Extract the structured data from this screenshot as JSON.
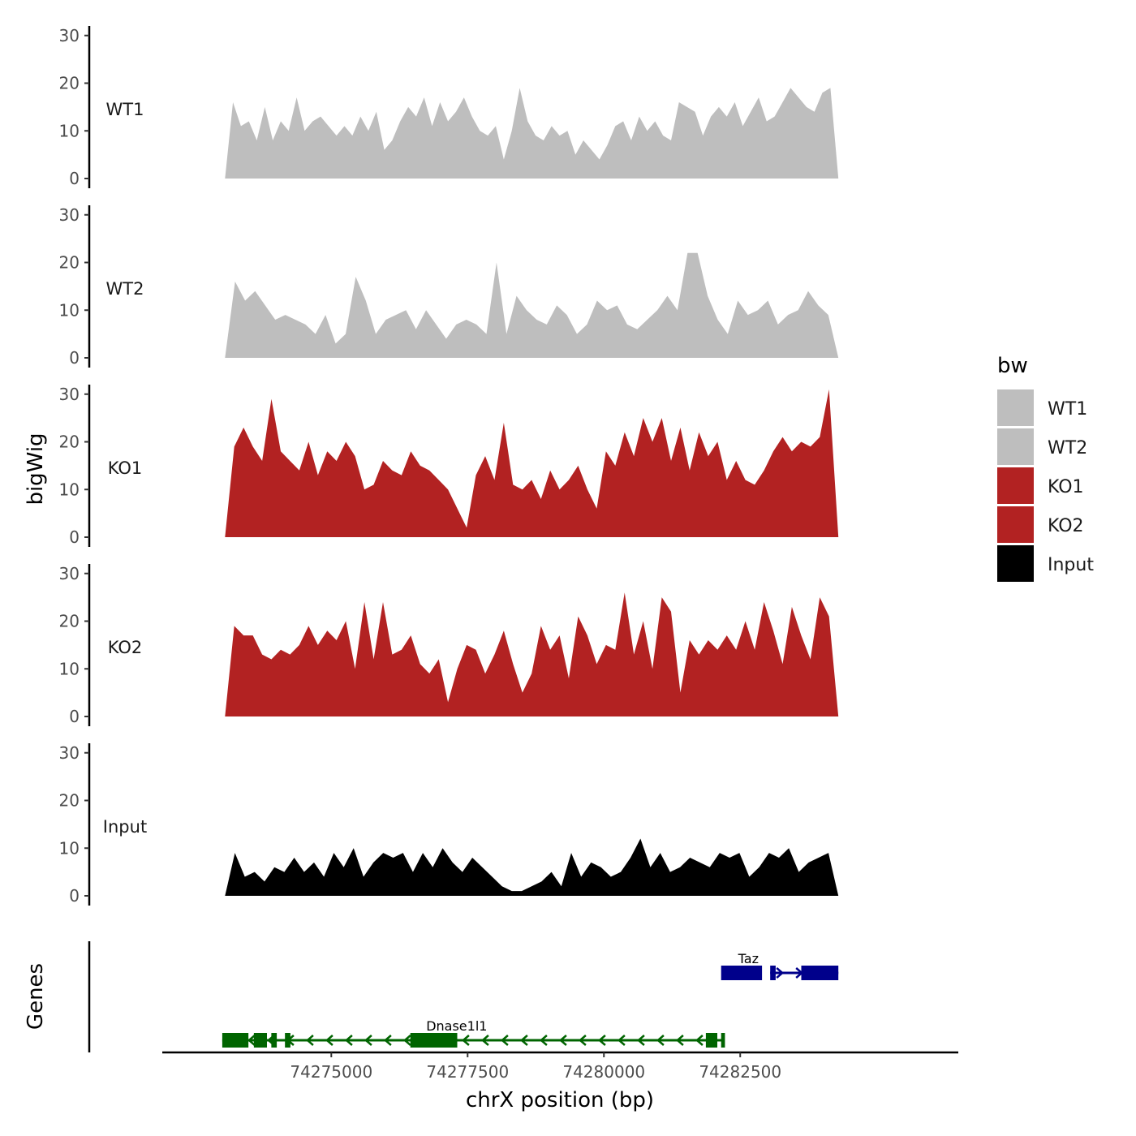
{
  "chart_data": {
    "type": "area",
    "chromosome": "chrX",
    "x_label": "chrX position (bp)",
    "y_label": "bigWig",
    "genes_panel_label": "Genes",
    "xlim": [
      74271900,
      74286500
    ],
    "data_range": [
      74273050,
      74284300
    ],
    "ylim": [
      0,
      32
    ],
    "y_ticks": [
      "0",
      "10",
      "20",
      "30"
    ],
    "x_ticks": [
      {
        "value": 74275000,
        "label": "74275000"
      },
      {
        "value": 74277500,
        "label": "74277500"
      },
      {
        "value": 74280000,
        "label": "74280000"
      },
      {
        "value": 74282500,
        "label": "74282500"
      }
    ],
    "legend": {
      "title": "bw",
      "entries": [
        {
          "label": "WT1",
          "color": "#bebebe"
        },
        {
          "label": "WT2",
          "color": "#bebebe"
        },
        {
          "label": "KO1",
          "color": "#b22222"
        },
        {
          "label": "KO2",
          "color": "#b22222"
        },
        {
          "label": "Input",
          "color": "#000000"
        }
      ]
    },
    "tracks": [
      {
        "name": "WT1",
        "color": "#bebebe",
        "values": [
          0,
          16,
          11,
          12,
          8,
          15,
          8,
          12,
          10,
          17,
          10,
          12,
          13,
          11,
          9,
          11,
          9,
          13,
          10,
          14,
          6,
          8,
          12,
          15,
          13,
          17,
          11,
          16,
          12,
          14,
          17,
          13,
          10,
          9,
          11,
          4,
          10,
          19,
          12,
          9,
          8,
          11,
          9,
          10,
          5,
          8,
          6,
          4,
          7,
          11,
          12,
          8,
          13,
          10,
          12,
          9,
          8,
          16,
          15,
          14,
          9,
          13,
          15,
          13,
          16,
          11,
          14,
          17,
          12,
          13,
          16,
          19,
          17,
          15,
          14,
          18,
          19,
          0
        ]
      },
      {
        "name": "WT2",
        "color": "#bebebe",
        "values": [
          0,
          16,
          12,
          14,
          11,
          8,
          9,
          8,
          7,
          5,
          9,
          3,
          5,
          17,
          12,
          5,
          8,
          9,
          10,
          6,
          10,
          7,
          4,
          7,
          8,
          7,
          5,
          20,
          5,
          13,
          10,
          8,
          7,
          11,
          9,
          5,
          7,
          12,
          10,
          11,
          7,
          6,
          8,
          10,
          13,
          10,
          22,
          22,
          13,
          8,
          5,
          12,
          9,
          10,
          12,
          7,
          9,
          10,
          14,
          11,
          9,
          0
        ]
      },
      {
        "name": "KO1",
        "color": "#b22222",
        "values": [
          0,
          19,
          23,
          19,
          16,
          29,
          18,
          16,
          14,
          20,
          13,
          18,
          16,
          20,
          17,
          10,
          11,
          16,
          14,
          13,
          18,
          15,
          14,
          12,
          10,
          6,
          2,
          13,
          17,
          12,
          24,
          11,
          10,
          12,
          8,
          14,
          10,
          12,
          15,
          10,
          6,
          18,
          15,
          22,
          17,
          25,
          20,
          25,
          16,
          23,
          14,
          22,
          17,
          20,
          12,
          16,
          12,
          11,
          14,
          18,
          21,
          18,
          20,
          19,
          21,
          31,
          0
        ]
      },
      {
        "name": "KO2",
        "color": "#b22222",
        "values": [
          0,
          19,
          17,
          17,
          13,
          12,
          14,
          13,
          15,
          19,
          15,
          18,
          16,
          20,
          10,
          24,
          12,
          24,
          13,
          14,
          17,
          11,
          9,
          12,
          3,
          10,
          15,
          14,
          9,
          13,
          18,
          11,
          5,
          9,
          19,
          14,
          17,
          8,
          21,
          17,
          11,
          15,
          14,
          26,
          13,
          20,
          10,
          25,
          22,
          5,
          16,
          13,
          16,
          14,
          17,
          14,
          20,
          14,
          24,
          18,
          11,
          23,
          17,
          12,
          25,
          21,
          0
        ]
      },
      {
        "name": "Input",
        "color": "#000000",
        "values": [
          0,
          9,
          4,
          5,
          3,
          6,
          5,
          8,
          5,
          7,
          4,
          9,
          6,
          10,
          4,
          7,
          9,
          8,
          9,
          5,
          9,
          6,
          10,
          7,
          5,
          8,
          6,
          4,
          2,
          1,
          1,
          2,
          3,
          5,
          2,
          9,
          4,
          7,
          6,
          4,
          5,
          8,
          12,
          6,
          9,
          5,
          6,
          8,
          7,
          6,
          9,
          8,
          9,
          4,
          6,
          9,
          8,
          10,
          5,
          7,
          8,
          9,
          0
        ]
      }
    ],
    "genes": [
      {
        "name": "Taz",
        "strand": "+",
        "color": "#00008b",
        "row": "top",
        "start": 74283050,
        "end": 74284300,
        "label_position": 74282650,
        "exons": [
          [
            74283050,
            74283150
          ],
          [
            74282150,
            74282900
          ],
          [
            74283620,
            74284300
          ]
        ]
      },
      {
        "name": "Dnase1l1",
        "strand": "-",
        "color": "#006400",
        "row": "bottom",
        "start": 74273000,
        "end": 74282200,
        "label_position": 74277300,
        "exons": [
          [
            74273000,
            74273480
          ],
          [
            74273580,
            74273820
          ],
          [
            74273900,
            74274000
          ],
          [
            74274150,
            74274250
          ],
          [
            74276450,
            74277310
          ],
          [
            74281870,
            74282080
          ],
          [
            74282150,
            74282220
          ]
        ]
      }
    ]
  }
}
